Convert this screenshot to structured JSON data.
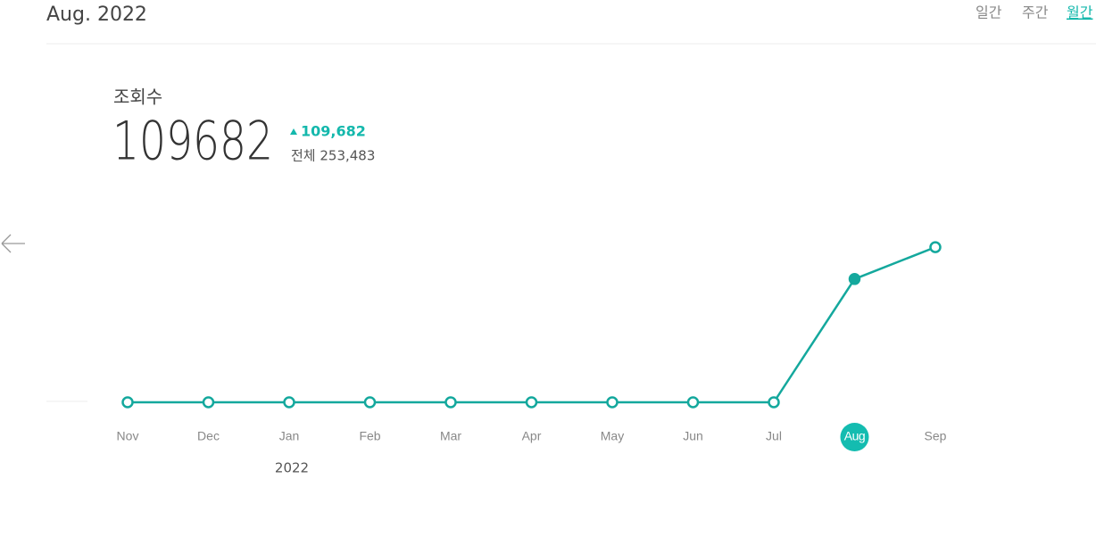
{
  "header": {
    "title": "Aug. 2022",
    "tabs": [
      {
        "label": "일간",
        "active": false
      },
      {
        "label": "주간",
        "active": false
      },
      {
        "label": "월간",
        "active": true
      }
    ]
  },
  "metric": {
    "label": "조회수",
    "value": 109682,
    "change": "109,682",
    "total": "전체 253,483"
  },
  "chart_data": {
    "type": "line",
    "categories": [
      "Nov",
      "Dec",
      "Jan",
      "Feb",
      "Mar",
      "Apr",
      "May",
      "Jun",
      "Jul",
      "Aug",
      "Sep"
    ],
    "values": [
      0,
      0,
      0,
      0,
      0,
      0,
      0,
      0,
      0,
      109682,
      138000
    ],
    "color": "#14a89d",
    "ylim": [
      0,
      150000
    ],
    "selected": 9,
    "year_label": "2022"
  }
}
